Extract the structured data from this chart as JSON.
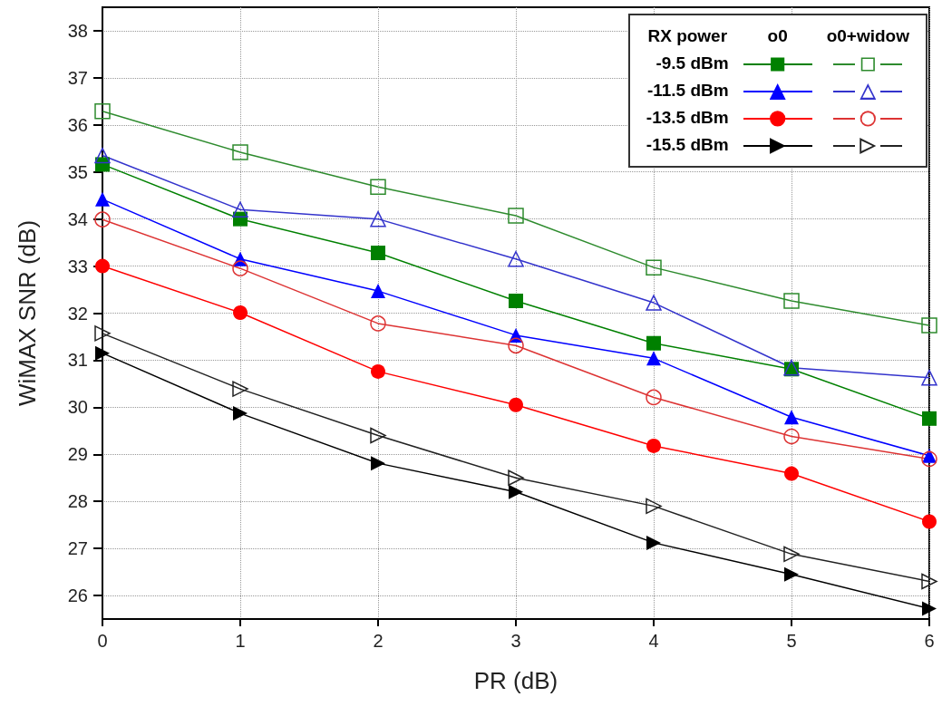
{
  "chart_data": {
    "type": "line",
    "xlabel": "PR (dB)",
    "ylabel": "WiMAX SNR (dB)",
    "legend_title": "RX power",
    "annotations": [
      "o0",
      "o0+widow"
    ],
    "x": [
      0,
      1,
      2,
      3,
      4,
      5,
      6
    ],
    "xlim": [
      0,
      6
    ],
    "xticks": [
      0,
      1,
      2,
      3,
      4,
      5,
      6
    ],
    "ylim": [
      25.5,
      38.5
    ],
    "yticks": [
      26,
      27,
      28,
      29,
      30,
      31,
      32,
      33,
      34,
      35,
      36,
      37,
      38
    ],
    "grid": true,
    "legend": "top right",
    "line_style": "solid",
    "series": [
      {
        "name": "-9.5 dBm",
        "color": "#008000",
        "marker": "square",
        "values": [
          35.16,
          34.0,
          33.28,
          32.26,
          31.36,
          30.81,
          29.76
        ]
      },
      {
        "color": "#2e8b2e",
        "marker": "square-open",
        "values": [
          36.29,
          35.42,
          34.68,
          34.07,
          32.97,
          32.26,
          31.74
        ]
      },
      {
        "name": "-11.5 dBm",
        "color": "#0000ff",
        "marker": "triangle",
        "values": [
          34.42,
          33.15,
          32.47,
          31.53,
          31.04,
          29.79,
          28.97
        ]
      },
      {
        "color": "#3333cc",
        "marker": "triangle-open",
        "values": [
          35.35,
          34.2,
          34.0,
          33.15,
          32.22,
          30.84,
          30.63
        ]
      },
      {
        "name": "-13.5 dBm",
        "color": "#ff0000",
        "marker": "circle",
        "values": [
          33.0,
          32.01,
          30.76,
          30.05,
          29.18,
          28.59,
          27.57
        ]
      },
      {
        "color": "#dd3333",
        "marker": "circle-open",
        "values": [
          33.99,
          32.95,
          31.78,
          31.31,
          30.21,
          29.38,
          28.9
        ]
      },
      {
        "name": "-15.5 dBm",
        "color": "#000000",
        "marker": "triangle-right",
        "values": [
          31.15,
          29.87,
          28.81,
          28.2,
          27.12,
          26.45,
          25.72
        ]
      },
      {
        "color": "#222222",
        "marker": "triangle-right-open",
        "values": [
          31.57,
          30.39,
          29.4,
          28.5,
          27.9,
          26.88,
          26.3
        ]
      }
    ]
  }
}
